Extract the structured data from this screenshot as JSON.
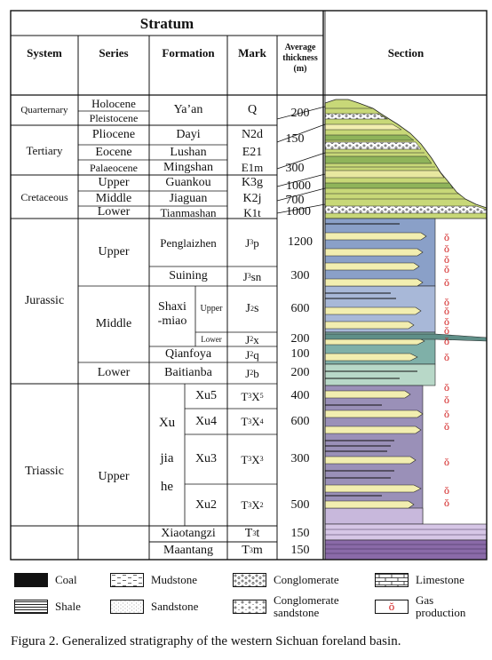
{
  "header": {
    "stratum": "Stratum",
    "system": "System",
    "series": "Series",
    "formation": "Formation",
    "mark": "Mark",
    "thickness_l1": "Average",
    "thickness_l2": "thickness",
    "thickness_l3": "(m)",
    "section": "Section"
  },
  "systems": {
    "quarternary": "Quarternary",
    "tertiary": "Tertiary",
    "cretaceous": "Cretaceous",
    "jurassic": "Jurassic",
    "triassic": "Triassic"
  },
  "series": {
    "holocene": "Holocene",
    "pleistocene": "Pleistocene",
    "pliocene": "Pliocene",
    "eocene": "Eocene",
    "palaeocene": "Palaeocene",
    "cret_upper": "Upper",
    "cret_middle": "Middle",
    "cret_lower": "Lower",
    "jur_upper": "Upper",
    "jur_middle": "Middle",
    "jur_lower": "Lower",
    "tri_upper": "Upper"
  },
  "formations": {
    "yaan": "Ya’an",
    "dayi": "Dayi",
    "lushan": "Lushan",
    "mingshan": "Mingshan",
    "guankou": "Guankou",
    "jiaguan": "Jiaguan",
    "tianmashan": "Tianmashan",
    "penglaizhen": "Penglaizhen",
    "suining": "Suining",
    "shaxi_l1": "Shaxi",
    "shaxi_l2": "-miao",
    "shaxi_upper": "Upper",
    "shaxi_lower": "Lower",
    "qianfoya": "Qianfoya",
    "baitianba": "Baitianba",
    "xujiahe_l1": "Xu",
    "xujiahe_l2": "jia",
    "xujiahe_l3": "he",
    "xu5": "Xu5",
    "xu4": "Xu4",
    "xu3": "Xu3",
    "xu2": "Xu2",
    "xiaotangzi": "Xiaotangzi",
    "maantang": "Maantang"
  },
  "marks": {
    "q": "Q",
    "n2d": "N2d",
    "e21": "E21",
    "e1m": "E1m",
    "k3g": "K3g",
    "k2j": "K2j",
    "k1t": "K1t",
    "j3p": "J3p",
    "j3sn": "J3sn",
    "j2s": "J2s",
    "j2x": "J2x",
    "j2q": "J2q",
    "j2b": "J2b",
    "t3x5": "T3X5",
    "t3x4": "T3X4",
    "t3x3": "T3X3",
    "t3x2": "T3X2",
    "t3t": "T3t",
    "t3m": "T3m"
  },
  "thickness": {
    "q": "200",
    "n2d": "150",
    "e1m": "300",
    "k3g": "1000",
    "k2j": "700",
    "k1t": "1000",
    "j3p": "1200",
    "j3sn": "300",
    "j2s": "600",
    "j2x": "200",
    "j2q": "100",
    "j2b": "200",
    "t3x5": "400",
    "t3x4": "600",
    "t3x3": "300",
    "t3x2": "500",
    "t3t": "150",
    "t3m": "150"
  },
  "legend": {
    "coal": "Coal",
    "mudstone": "Mudstone",
    "conglomerate": "Conglomerate",
    "limestone": "Limestone",
    "shale": "Shale",
    "sandstone": "Sandstone",
    "cong_sand_l1": "Conglomerate",
    "cong_sand_l2": "sandstone",
    "gas_l1": "Gas",
    "gas_l2": "production"
  },
  "gas_symbol": "ŏ",
  "caption": "Figura 2. Generalized stratigraphy of the western Sichuan foreland basin.",
  "colors": {
    "yellow_green": "#c8d878",
    "green": "#8fb45a",
    "pale_yellow": "#f2eeb0",
    "blue_gray": "#8aa0c8",
    "lavender": "#c8b8dc",
    "purple": "#8a6aa8",
    "gas_red": "#d01818"
  }
}
